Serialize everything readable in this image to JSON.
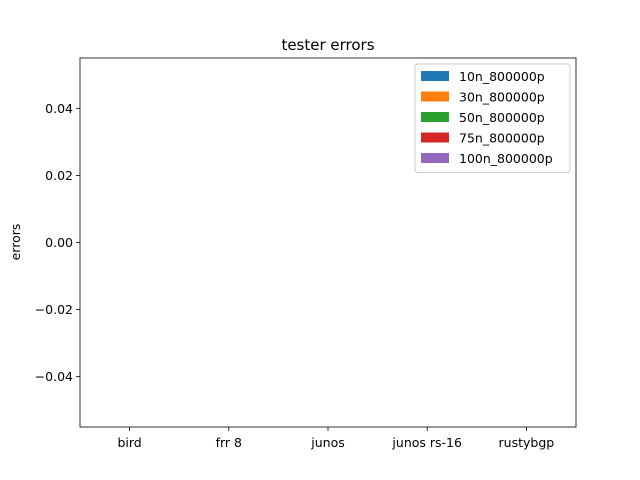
{
  "chart_data": {
    "type": "bar",
    "title": "tester errors",
    "xlabel": "",
    "ylabel": "errors",
    "categories": [
      "bird",
      "frr 8",
      "junos",
      "junos rs-16",
      "rustybgp"
    ],
    "series": [
      {
        "name": "10n_800000p",
        "color": "#1f77b4",
        "values": [
          0,
          0,
          0,
          0,
          0
        ]
      },
      {
        "name": "30n_800000p",
        "color": "#ff7f0e",
        "values": [
          0,
          0,
          0,
          0,
          0
        ]
      },
      {
        "name": "50n_800000p",
        "color": "#2ca02c",
        "values": [
          0,
          0,
          0,
          0,
          0
        ]
      },
      {
        "name": "75n_800000p",
        "color": "#d62728",
        "values": [
          0,
          0,
          0,
          0,
          0
        ]
      },
      {
        "name": "100n_800000p",
        "color": "#9467bd",
        "values": [
          0,
          0,
          0,
          0,
          0
        ]
      }
    ],
    "ylim": [
      -0.055,
      0.055
    ],
    "yticks": [
      -0.04,
      -0.02,
      0.0,
      0.02,
      0.04
    ],
    "ytick_labels": [
      "−0.04",
      "−0.02",
      "0.00",
      "0.02",
      "0.04"
    ],
    "grid": false,
    "legend_position": "top-right"
  }
}
